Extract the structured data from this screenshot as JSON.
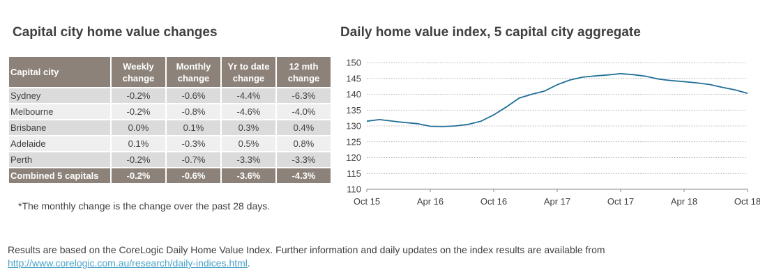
{
  "table": {
    "title": "Capital city home value changes",
    "headers": {
      "city": "Capital city",
      "weekly": [
        "Weekly",
        "change"
      ],
      "monthly": [
        "Monthly",
        "change"
      ],
      "ytd": [
        "Yr to date",
        "change"
      ],
      "twelve": [
        "12 mth",
        "change"
      ]
    },
    "rows": [
      {
        "city": "Sydney",
        "weekly": "-0.2%",
        "monthly": "-0.6%",
        "ytd": "-4.4%",
        "twelve": "-6.3%"
      },
      {
        "city": "Melbourne",
        "weekly": "-0.2%",
        "monthly": "-0.8%",
        "ytd": "-4.6%",
        "twelve": "-4.0%"
      },
      {
        "city": "Brisbane",
        "weekly": "0.0%",
        "monthly": "0.1%",
        "ytd": "0.3%",
        "twelve": "0.4%"
      },
      {
        "city": "Adelaide",
        "weekly": "0.1%",
        "monthly": "-0.3%",
        "ytd": "0.5%",
        "twelve": "0.8%"
      },
      {
        "city": "Perth",
        "weekly": "-0.2%",
        "monthly": "-0.7%",
        "ytd": "-3.3%",
        "twelve": "-3.3%"
      }
    ],
    "total": {
      "city": "Combined 5 capitals",
      "weekly": "-0.2%",
      "monthly": "-0.6%",
      "ytd": "-3.6%",
      "twelve": "-4.3%"
    },
    "header_color": "#8c8279",
    "footnote": "*The monthly change is the change over the past 28 days."
  },
  "source": {
    "text": "Results are based on the CoreLogic Daily Home Value Index.  Further information and daily updates on the index results are available from",
    "link": "http://www.corelogic.com.au/research/daily-indices.html",
    "trailing": "."
  },
  "chart_data": {
    "type": "line",
    "title": "Daily home value index, 5 capital city aggregate",
    "xlabel": "",
    "ylabel": "",
    "ylim": [
      110,
      150
    ],
    "yticks": [
      110,
      115,
      120,
      125,
      130,
      135,
      140,
      145,
      150
    ],
    "xticks": [
      "Oct 15",
      "Apr 16",
      "Oct 16",
      "Apr 17",
      "Oct 17",
      "Apr 18",
      "Oct 18"
    ],
    "grid": "horizontal dotted",
    "line_color": "#1f6e96",
    "series": [
      {
        "x": [
          0,
          0.2,
          0.5,
          0.8,
          1.0,
          1.2,
          1.4,
          1.6,
          1.8,
          2.0,
          2.2,
          2.4,
          2.6,
          2.8,
          3.0,
          3.2,
          3.4,
          3.6,
          3.8,
          4.0,
          4.2,
          4.4,
          4.6,
          4.8,
          5.0,
          5.2,
          5.4,
          5.6,
          5.8,
          6.0
        ],
        "y": [
          131.5,
          132.0,
          131.3,
          130.7,
          129.9,
          129.8,
          130.0,
          130.5,
          131.5,
          133.5,
          136.0,
          138.8,
          140.0,
          141.0,
          143.0,
          144.5,
          145.4,
          145.8,
          146.1,
          146.5,
          146.2,
          145.7,
          144.8,
          144.3,
          144.0,
          143.6,
          143.1,
          142.2,
          141.4,
          140.3
        ]
      }
    ]
  }
}
